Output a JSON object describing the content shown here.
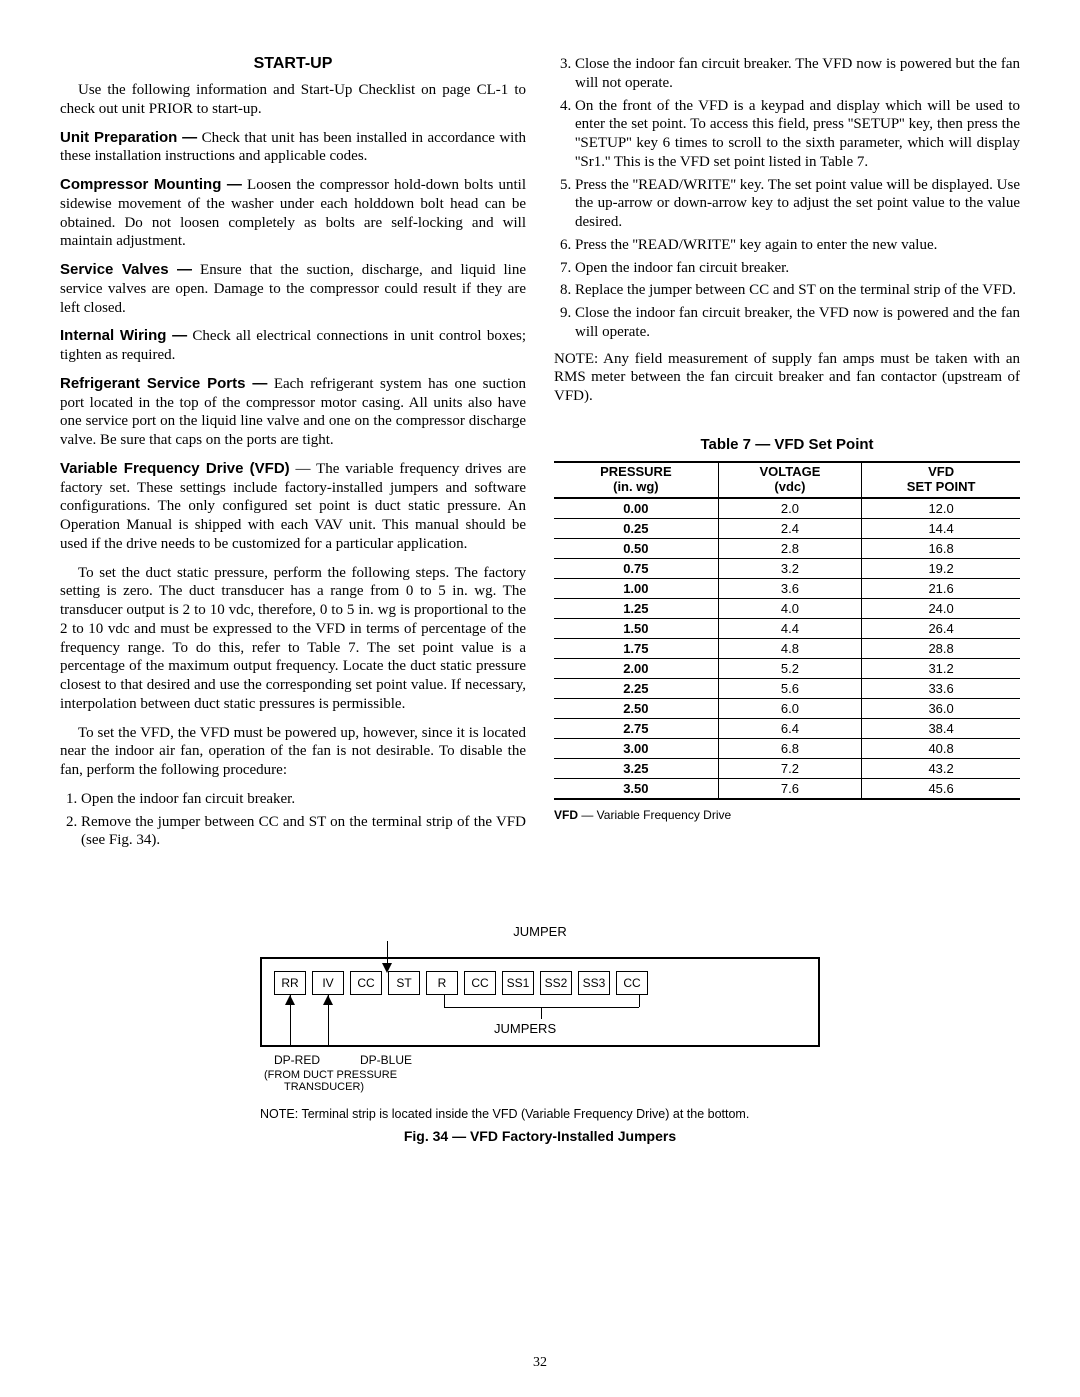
{
  "page_number": "32",
  "left": {
    "title": "START-UP",
    "intro": "Use the following information and Start-Up Checklist on page CL-1 to check out unit PRIOR to start-up.",
    "unit_prep": {
      "lead": "Unit Preparation —",
      "body": " Check that unit has been installed in accordance with these installation instructions and applicable codes."
    },
    "comp_mount": {
      "lead": "Compressor Mounting —",
      "body": " Loosen the compressor hold-down bolts until sidewise movement of the washer under each holddown bolt head can be obtained. Do not loosen completely as bolts are self-locking and will maintain adjustment."
    },
    "service_valves": {
      "lead": "Service Valves —",
      "body": " Ensure that the suction, discharge, and liquid line service valves are open. Damage to the compressor could result if they are left closed."
    },
    "internal_wiring": {
      "lead": "Internal Wiring —",
      "body": " Check all electrical connections in unit control boxes; tighten as required."
    },
    "refrig_ports": {
      "lead": "Refrigerant Service Ports —",
      "body": " Each refrigerant system has one suction port located in the top of the compressor motor casing. All units also have one service port on the liquid line valve and one on the compressor discharge valve. Be sure that caps on the ports are tight."
    },
    "vfd": {
      "lead": "Variable Frequency Drive (VFD)",
      "body": " — The variable frequency drives are factory set. These settings include factory-installed jumpers and software configurations. The only configured set point is duct static pressure. An Operation Manual is shipped with each VAV unit. This manual should be used if the drive needs to be customized for a particular application."
    },
    "vfd_p2": "To set the duct static pressure, perform the following steps. The factory setting is zero. The duct transducer has a range from 0 to 5 in. wg. The transducer output is 2 to 10 vdc, therefore, 0 to 5 in. wg is proportional to the 2 to 10 vdc and must be expressed to the VFD in terms of percentage of the frequency range. To do this, refer to Table 7. The set point value is a percentage of the maximum output frequency. Locate the duct static pressure closest to that desired and use the corresponding set point value. If necessary, interpolation between duct static pressures is permissible.",
    "vfd_p3": "To set the VFD, the VFD must be powered up, however, since it is located near the indoor air fan, operation of the fan is not desirable. To disable the fan, perform the following procedure:",
    "steps12": [
      "Open the indoor fan circuit breaker.",
      "Remove the jumper between CC and ST on the terminal strip of the VFD (see Fig. 34)."
    ]
  },
  "right": {
    "steps3to9": [
      "Close the indoor fan circuit breaker. The VFD now is powered but the fan will not operate.",
      "On the front of the VFD is a keypad and display which will be used to enter the set point. To access this field, press ''SETUP'' key, then press the ''SETUP'' key 6 times to scroll to the sixth parameter, which will display ''Sr1.'' This is the VFD set point listed in Table 7.",
      "Press the ''READ/WRITE'' key. The set point value will be displayed. Use the up-arrow or down-arrow key to adjust the set point value to the value desired.",
      "Press the ''READ/WRITE'' key again to enter the new value.",
      "Open the indoor fan circuit breaker.",
      "Replace the jumper between CC and ST on the terminal strip of the VFD.",
      "Close the indoor fan circuit breaker, the VFD now is powered and the fan will operate."
    ],
    "note": "NOTE: Any field measurement of supply fan amps must be taken with an RMS meter between the fan circuit breaker and fan contactor (upstream of VFD).",
    "table": {
      "caption": "Table 7 — VFD Set Point",
      "head": {
        "c1a": "PRESSURE",
        "c1b": "(in. wg)",
        "c2a": "VOLTAGE",
        "c2b": "(vdc)",
        "c3a": "VFD",
        "c3b": "SET POINT"
      },
      "rows": [
        [
          "0.00",
          "2.0",
          "12.0"
        ],
        [
          "0.25",
          "2.4",
          "14.4"
        ],
        [
          "0.50",
          "2.8",
          "16.8"
        ],
        [
          "0.75",
          "3.2",
          "19.2"
        ],
        [
          "1.00",
          "3.6",
          "21.6"
        ],
        [
          "1.25",
          "4.0",
          "24.0"
        ],
        [
          "1.50",
          "4.4",
          "26.4"
        ],
        [
          "1.75",
          "4.8",
          "28.8"
        ],
        [
          "2.00",
          "5.2",
          "31.2"
        ],
        [
          "2.25",
          "5.6",
          "33.6"
        ],
        [
          "2.50",
          "6.0",
          "36.0"
        ],
        [
          "2.75",
          "6.4",
          "38.4"
        ],
        [
          "3.00",
          "6.8",
          "40.8"
        ],
        [
          "3.25",
          "7.2",
          "43.2"
        ],
        [
          "3.50",
          "7.6",
          "45.6"
        ]
      ],
      "legend_abbr": "VFD",
      "legend_sep": " — ",
      "legend_text": "Variable Frequency Drive"
    }
  },
  "figure": {
    "top_label": "JUMPER",
    "terminals": [
      "RR",
      "IV",
      "CC",
      "ST",
      "R",
      "CC",
      "SS1",
      "SS2",
      "SS3",
      "CC"
    ],
    "bottom_label": "JUMPERS",
    "dp_red": "DP-RED",
    "dp_blue": "DP-BLUE",
    "from_note_l1": "(FROM DUCT PRESSURE",
    "from_note_l2": "TRANSDUCER)",
    "note": "NOTE: Terminal strip is located inside the VFD (Variable Frequency Drive) at the bottom.",
    "caption": "Fig. 34 — VFD Factory-Installed Jumpers"
  }
}
